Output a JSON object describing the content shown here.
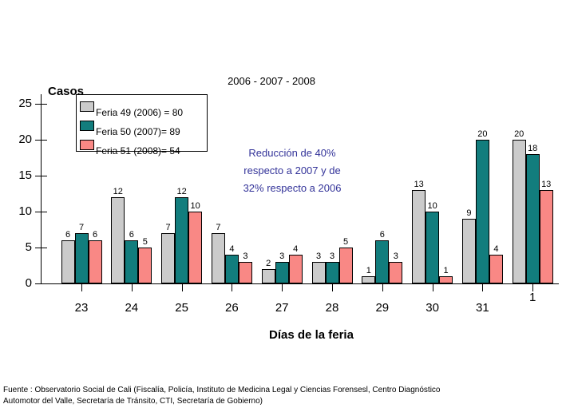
{
  "title": "2006 - 2007 - 2008",
  "y_axis_title": "Casos",
  "x_axis_title": "Días de la feria",
  "legend": {
    "items": [
      {
        "label": "Feria 49 (2006) = 80",
        "color": "#cbcbcb"
      },
      {
        "label": "Feria 50 (2007)= 89",
        "color": "#127d7d"
      },
      {
        "label": "Feria 51 (2008)= 54",
        "color": "#f98885"
      }
    ]
  },
  "annotation": {
    "color": "#333399",
    "lines": [
      "Reducción de 40%",
      "respecto a 2007 y de",
      "32% respecto a 2006"
    ]
  },
  "footer": {
    "line1": "Fuente : Observatorio Social de Cali (Fiscalía, Policía, Instituto de Medicina Legal y Ciencias Forensesl, Centro Diagnóstico",
    "line2": "Automotor del Valle, Secretaría de Tránsito, CTI, Secretaría de Gobierno)"
  },
  "chart_data": {
    "type": "bar",
    "title": "2006 - 2007 - 2008",
    "xlabel": "Días de la feria",
    "ylabel": "Casos",
    "categories": [
      "23",
      "24",
      "25",
      "26",
      "27",
      "28",
      "29",
      "30",
      "31",
      "1"
    ],
    "series": [
      {
        "name": "Feria 49 (2006) = 80",
        "color": "#cbcbcb",
        "pattern": "dots",
        "values": [
          6,
          12,
          7,
          7,
          2,
          3,
          1,
          13,
          9,
          20
        ]
      },
      {
        "name": "Feria 50 (2007)= 89",
        "color": "#127d7d",
        "pattern": "solid",
        "values": [
          7,
          6,
          12,
          4,
          3,
          3,
          6,
          10,
          20,
          18
        ]
      },
      {
        "name": "Feria 51 (2008)= 54",
        "color": "#f98885",
        "pattern": "solid",
        "values": [
          6,
          5,
          10,
          3,
          4,
          5,
          3,
          1,
          4,
          13
        ]
      }
    ],
    "ylim": [
      0,
      25
    ],
    "yticks": [
      0,
      5,
      10,
      15,
      20,
      25
    ],
    "grid": false,
    "legend_position": "top-left",
    "bar_labels": true
  }
}
